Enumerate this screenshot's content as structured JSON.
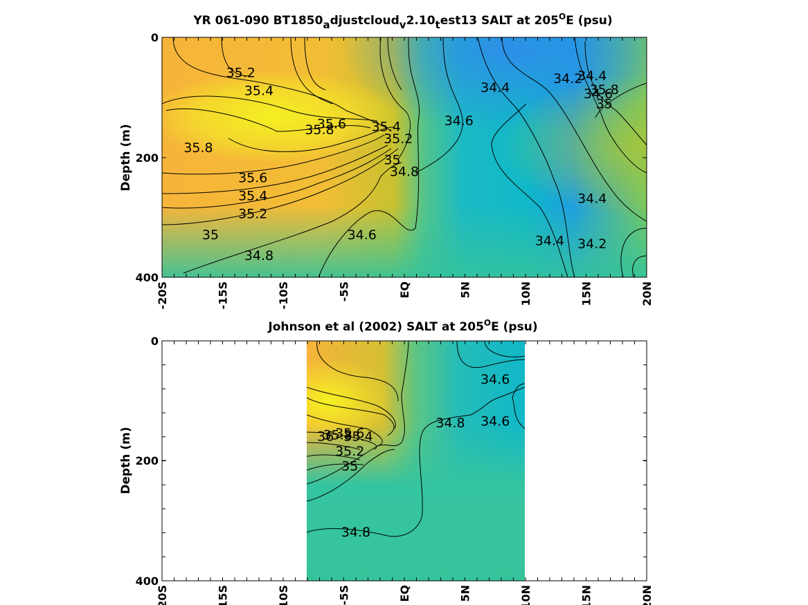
{
  "chart_data": [
    {
      "type": "heatmap",
      "title": "YR 061-090 BT1850_adjustcloud_v2.10_test13 SALT at 205°E (psu)",
      "ylabel": "Depth (m)",
      "xticks": [
        "-20S",
        "-15S",
        "-10S",
        "-5S",
        "EQ",
        "5N",
        "10N",
        "15N",
        "20N"
      ],
      "xlim": [
        -20,
        20
      ],
      "yticks": [
        "0",
        "200",
        "400"
      ],
      "ylim": [
        0,
        400
      ],
      "y_reversed": true,
      "colors": {
        "low": "#2d8ee8",
        "mid": "#10b8c8",
        "midhigh": "#35c4a0",
        "high": "#f7b43a",
        "max": "#f5f122"
      },
      "contour_labels": [
        {
          "label": "35.2",
          "x": -13.5,
          "y": 60
        },
        {
          "label": "35.4",
          "x": -12.0,
          "y": 90
        },
        {
          "label": "35.6",
          "x": -6.0,
          "y": 145
        },
        {
          "label": "35.8",
          "x": -7.0,
          "y": 155
        },
        {
          "label": "35.8",
          "x": -17.0,
          "y": 185
        },
        {
          "label": "35.4",
          "x": -1.5,
          "y": 150
        },
        {
          "label": "35.2",
          "x": -0.5,
          "y": 170
        },
        {
          "label": "35",
          "x": -1.0,
          "y": 205
        },
        {
          "label": "34.8",
          "x": 0.0,
          "y": 225
        },
        {
          "label": "35.6",
          "x": -12.5,
          "y": 235
        },
        {
          "label": "35.4",
          "x": -12.5,
          "y": 265
        },
        {
          "label": "35.2",
          "x": -12.5,
          "y": 295
        },
        {
          "label": "35",
          "x": -16.0,
          "y": 330
        },
        {
          "label": "34.8",
          "x": -12.0,
          "y": 365
        },
        {
          "label": "34.6",
          "x": -3.5,
          "y": 330
        },
        {
          "label": "34.6",
          "x": 4.5,
          "y": 140
        },
        {
          "label": "34.4",
          "x": 7.5,
          "y": 85
        },
        {
          "label": "34.2",
          "x": 13.5,
          "y": 70
        },
        {
          "label": "34.4",
          "x": 15.5,
          "y": 65
        },
        {
          "label": "34.6",
          "x": 16.0,
          "y": 95
        },
        {
          "label": "35",
          "x": 16.5,
          "y": 112
        },
        {
          "label": "35.8",
          "x": 16.5,
          "y": 88
        },
        {
          "label": "34.4",
          "x": 15.5,
          "y": 270
        },
        {
          "label": "34.4",
          "x": 12.0,
          "y": 340
        },
        {
          "label": "34.2",
          "x": 15.5,
          "y": 345
        }
      ]
    },
    {
      "type": "heatmap",
      "title": "Johnson et al (2002) SALT at 205°E (psu)",
      "ylabel": "Depth (m)",
      "xticks": [
        "-20S",
        "-15S",
        "-10S",
        "-5S",
        "EQ",
        "5N",
        "10N",
        "15N",
        "20N"
      ],
      "xlim": [
        -20,
        20
      ],
      "data_xrange": [
        -8,
        10
      ],
      "yticks": [
        "0",
        "200",
        "400"
      ],
      "ylim": [
        0,
        400
      ],
      "y_reversed": true,
      "colors": {
        "low": "#10b8c8",
        "mid": "#35c4a0",
        "high": "#f7b43a",
        "max": "#f5f122"
      },
      "contour_labels": [
        {
          "label": "34.6",
          "x": 7.5,
          "y": 65
        },
        {
          "label": "34.6",
          "x": 7.5,
          "y": 135
        },
        {
          "label": "34.8",
          "x": 3.8,
          "y": 138
        },
        {
          "label": "36",
          "x": -6.5,
          "y": 160
        },
        {
          "label": "35.8",
          "x": -5.5,
          "y": 158
        },
        {
          "label": "35.6",
          "x": -4.5,
          "y": 155
        },
        {
          "label": "35.4",
          "x": -3.8,
          "y": 160
        },
        {
          "label": "35.2",
          "x": -4.5,
          "y": 185
        },
        {
          "label": "35",
          "x": -4.5,
          "y": 210
        },
        {
          "label": "34.8",
          "x": -4.0,
          "y": 320
        }
      ]
    }
  ]
}
